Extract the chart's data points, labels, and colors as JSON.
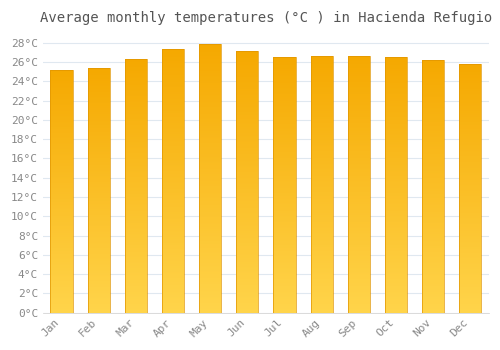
{
  "title": "Average monthly temperatures (°C ) in Hacienda Refugio",
  "months": [
    "Jan",
    "Feb",
    "Mar",
    "Apr",
    "May",
    "Jun",
    "Jul",
    "Aug",
    "Sep",
    "Oct",
    "Nov",
    "Dec"
  ],
  "values": [
    25.2,
    25.4,
    26.3,
    27.4,
    27.9,
    27.2,
    26.5,
    26.6,
    26.6,
    26.5,
    26.2,
    25.8
  ],
  "ylim": [
    0,
    29
  ],
  "yticks": [
    0,
    2,
    4,
    6,
    8,
    10,
    12,
    14,
    16,
    18,
    20,
    22,
    24,
    26,
    28
  ],
  "bar_color_bottom": "#FFD44A",
  "bar_color_top": "#F5A800",
  "bar_edge_color": "#E09500",
  "background_color": "#FFFFFF",
  "grid_color": "#E0E8F0",
  "title_fontsize": 10,
  "tick_fontsize": 8,
  "bar_width": 0.6,
  "n_segments": 200
}
